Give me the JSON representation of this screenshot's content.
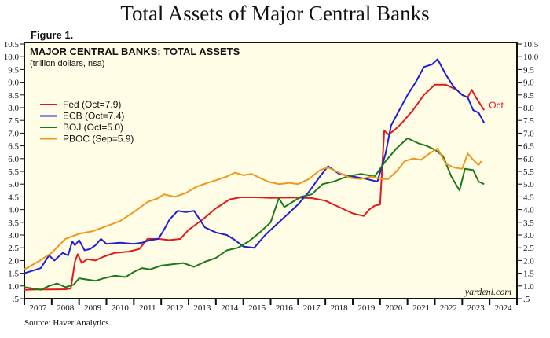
{
  "page": {
    "title": "Total Assets of Major Central Banks",
    "figure_label": "Figure 1.",
    "source": "Source: Haver Analytics.",
    "watermark": "yardeni.com"
  },
  "chart_data": {
    "type": "line",
    "title": "MAJOR CENTRAL BANKS: TOTAL ASSETS",
    "subtitle": "(trillion dollars, nsa)",
    "xlabel": "",
    "ylabel": "",
    "xlim": [
      2007,
      2025
    ],
    "ylim": [
      0.5,
      10.5
    ],
    "x_tick_labels": [
      "2007",
      "2008",
      "2009",
      "2010",
      "2011",
      "2012",
      "2013",
      "2014",
      "2015",
      "2016",
      "2017",
      "2018",
      "2019",
      "2020",
      "2021",
      "2022",
      "2023",
      "2024"
    ],
    "y_tick_labels": [
      ".5",
      "1.0",
      "1.5",
      "2.0",
      "2.5",
      "3.0",
      "3.5",
      "4.0",
      "4.5",
      "5.0",
      "5.5",
      "6.0",
      "6.5",
      "7.0",
      "7.5",
      "8.0",
      "8.5",
      "9.0",
      "9.5",
      "10.0",
      "10.5"
    ],
    "y_tick_values": [
      0.5,
      1.0,
      1.5,
      2.0,
      2.5,
      3.0,
      3.5,
      4.0,
      4.5,
      5.0,
      5.5,
      6.0,
      6.5,
      7.0,
      7.5,
      8.0,
      8.5,
      9.0,
      9.5,
      10.0,
      10.5
    ],
    "legend_position": "top-left",
    "end_annotation": {
      "label": "Oct",
      "series": "Fed"
    },
    "series": [
      {
        "name": "Fed (Oct=7.9)",
        "color": "#e31a1c",
        "x": [
          2007.0,
          2007.5,
          2008.0,
          2008.5,
          2008.7,
          2008.85,
          2008.95,
          2009.1,
          2009.3,
          2009.6,
          2009.9,
          2010.3,
          2010.8,
          2011.2,
          2011.5,
          2011.9,
          2012.3,
          2012.7,
          2013.0,
          2013.5,
          2014.0,
          2014.5,
          2014.9,
          2015.5,
          2016.0,
          2016.5,
          2017.0,
          2017.5,
          2018.0,
          2018.5,
          2019.0,
          2019.4,
          2019.6,
          2019.8,
          2020.0,
          2020.15,
          2020.3,
          2020.5,
          2020.8,
          2021.2,
          2021.6,
          2022.0,
          2022.4,
          2022.8,
          2023.0,
          2023.2,
          2023.35,
          2023.5,
          2023.8
        ],
        "values": [
          0.85,
          0.86,
          0.86,
          0.87,
          0.9,
          1.95,
          2.25,
          1.9,
          2.05,
          2.0,
          2.15,
          2.3,
          2.35,
          2.45,
          2.85,
          2.85,
          2.8,
          2.85,
          3.2,
          3.6,
          4.05,
          4.4,
          4.48,
          4.48,
          4.46,
          4.47,
          4.47,
          4.45,
          4.35,
          4.1,
          3.85,
          3.75,
          4.0,
          4.15,
          4.2,
          7.1,
          6.95,
          7.1,
          7.4,
          7.9,
          8.5,
          8.9,
          8.9,
          8.7,
          8.5,
          8.4,
          8.7,
          8.4,
          7.9
        ]
      },
      {
        "name": "ECB (Oct=7.4)",
        "color": "#1f1fd6",
        "x": [
          2007.0,
          2007.3,
          2007.6,
          2007.9,
          2008.1,
          2008.4,
          2008.6,
          2008.75,
          2008.85,
          2009.0,
          2009.2,
          2009.4,
          2009.6,
          2009.8,
          2010.0,
          2010.5,
          2011.0,
          2011.3,
          2011.6,
          2011.9,
          2012.1,
          2012.3,
          2012.6,
          2012.9,
          2013.2,
          2013.6,
          2014.0,
          2014.4,
          2014.7,
          2015.0,
          2015.4,
          2015.8,
          2016.2,
          2016.6,
          2017.0,
          2017.4,
          2017.8,
          2018.1,
          2018.5,
          2019.0,
          2019.5,
          2019.9,
          2020.2,
          2020.4,
          2020.7,
          2021.0,
          2021.3,
          2021.6,
          2021.9,
          2022.1,
          2022.4,
          2022.7,
          2023.0,
          2023.2,
          2023.4,
          2023.6,
          2023.8
        ],
        "values": [
          1.5,
          1.6,
          1.7,
          2.2,
          2.0,
          2.3,
          2.2,
          2.75,
          2.6,
          2.8,
          2.4,
          2.45,
          2.6,
          2.85,
          2.65,
          2.7,
          2.65,
          2.7,
          2.8,
          2.85,
          3.2,
          3.6,
          3.95,
          3.9,
          3.95,
          3.3,
          3.1,
          3.0,
          2.8,
          2.55,
          2.5,
          3.0,
          3.4,
          3.8,
          4.2,
          4.7,
          5.3,
          5.7,
          5.4,
          5.3,
          5.2,
          5.1,
          6.2,
          7.3,
          7.9,
          8.5,
          9.0,
          9.6,
          9.7,
          9.9,
          9.3,
          8.8,
          8.5,
          8.4,
          7.9,
          7.8,
          7.4
        ]
      },
      {
        "name": "BOJ (Oct=5.0)",
        "color": "#1a7a1a",
        "x": [
          2007.0,
          2007.3,
          2007.6,
          2007.9,
          2008.2,
          2008.5,
          2008.8,
          2009.0,
          2009.3,
          2009.6,
          2009.9,
          2010.3,
          2010.7,
          2011.0,
          2011.3,
          2011.6,
          2012.0,
          2012.4,
          2012.8,
          2013.2,
          2013.6,
          2014.0,
          2014.4,
          2014.8,
          2015.2,
          2015.6,
          2016.0,
          2016.3,
          2016.5,
          2016.8,
          2017.1,
          2017.5,
          2017.9,
          2018.3,
          2018.8,
          2019.3,
          2019.8,
          2020.2,
          2020.6,
          2021.0,
          2021.4,
          2021.7,
          2022.0,
          2022.3,
          2022.6,
          2022.9,
          2023.1,
          2023.4,
          2023.6,
          2023.8
        ],
        "values": [
          0.95,
          0.9,
          0.85,
          1.0,
          1.1,
          0.95,
          1.05,
          1.3,
          1.25,
          1.2,
          1.3,
          1.4,
          1.35,
          1.55,
          1.7,
          1.65,
          1.8,
          1.85,
          1.9,
          1.75,
          1.95,
          2.1,
          2.4,
          2.5,
          2.75,
          3.1,
          3.5,
          4.45,
          4.1,
          4.3,
          4.5,
          4.6,
          5.0,
          5.1,
          5.3,
          5.4,
          5.3,
          5.9,
          6.4,
          6.8,
          6.6,
          6.5,
          6.35,
          6.1,
          5.3,
          4.75,
          5.6,
          5.55,
          5.1,
          5.0
        ]
      },
      {
        "name": "PBOC (Sep=5.9)",
        "color": "#f0961e",
        "x": [
          2007.0,
          2007.5,
          2008.0,
          2008.5,
          2009.0,
          2009.5,
          2010.0,
          2010.5,
          2011.0,
          2011.5,
          2011.9,
          2012.1,
          2012.5,
          2012.9,
          2013.3,
          2013.7,
          2014.0,
          2014.4,
          2014.7,
          2015.0,
          2015.3,
          2015.6,
          2015.9,
          2016.3,
          2016.7,
          2017.0,
          2017.4,
          2017.8,
          2018.1,
          2018.5,
          2018.9,
          2019.3,
          2019.7,
          2020.0,
          2020.3,
          2020.6,
          2020.9,
          2021.2,
          2021.5,
          2021.8,
          2022.1,
          2022.4,
          2022.7,
          2023.0,
          2023.2,
          2023.4,
          2023.6,
          2023.7
        ],
        "values": [
          1.65,
          1.95,
          2.3,
          2.85,
          3.05,
          3.15,
          3.35,
          3.55,
          3.9,
          4.3,
          4.45,
          4.6,
          4.5,
          4.65,
          4.9,
          5.05,
          5.15,
          5.3,
          5.45,
          5.35,
          5.4,
          5.25,
          5.1,
          5.0,
          5.05,
          5.0,
          5.2,
          5.55,
          5.65,
          5.45,
          5.25,
          5.2,
          5.3,
          5.2,
          5.2,
          5.5,
          5.9,
          6.0,
          5.95,
          6.2,
          6.4,
          5.8,
          5.65,
          5.6,
          6.2,
          5.95,
          5.75,
          5.9
        ]
      }
    ]
  }
}
